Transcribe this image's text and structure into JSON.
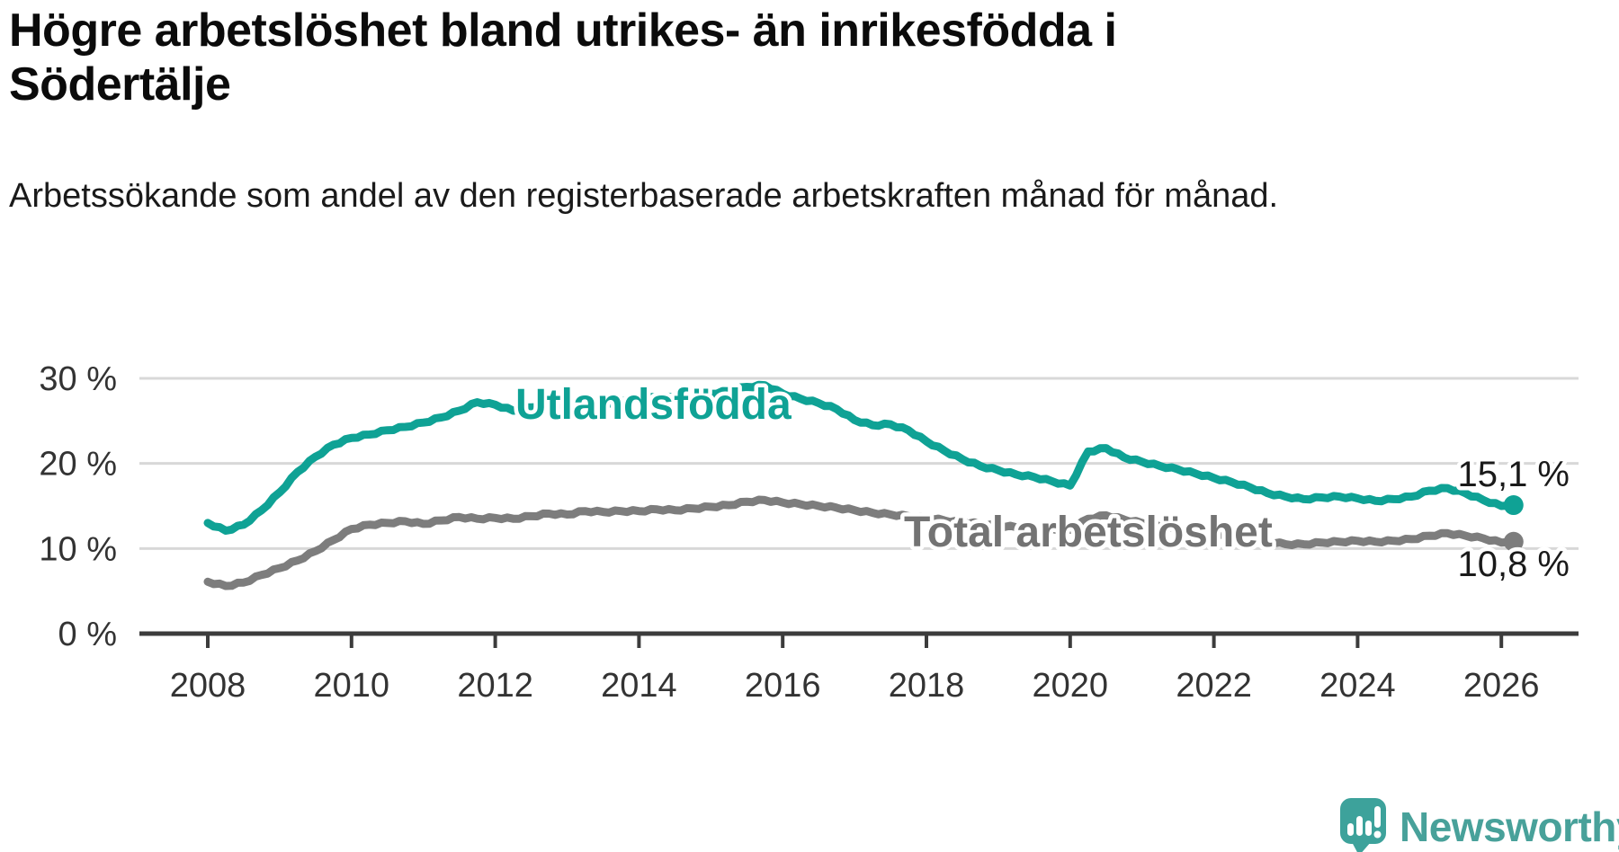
{
  "title": "Högre arbetslöshet bland utrikes- än inrikesfödda i Södertälje",
  "subtitle": "Arbetssökande som andel av den registerbaserade arbetskraften månad för månad.",
  "branding": {
    "name": "Newsworthy",
    "logo_icon": "speech-bubble-bar-chart-icon",
    "color": "#48a19a"
  },
  "colors": {
    "foreign_born_line": "#0fa295",
    "total_line": "#7d7d7d",
    "total_label": "#737373",
    "gridline": "#d8d8d8",
    "axis": "#3c3c3c",
    "axis_text": "#333333",
    "end_label_text": "#1a1a1a"
  },
  "chart_data": {
    "type": "line",
    "title": "Högre arbetslöshet bland utrikes- än inrikesfödda i Södertälje",
    "subtitle": "Arbetssökande som andel av den registerbaserade arbetskraften månad för månad.",
    "unit": "%",
    "xlabel": "",
    "ylabel": "",
    "ylim": [
      0,
      32
    ],
    "yticks": [
      {
        "value": 0,
        "label": "0 %"
      },
      {
        "value": 10,
        "label": "10 %"
      },
      {
        "value": 20,
        "label": "20 %"
      },
      {
        "value": 30,
        "label": "30 %"
      }
    ],
    "xticks": [
      2008,
      2010,
      2012,
      2014,
      2016,
      2018,
      2020,
      2022,
      2024,
      2026
    ],
    "grid": "horizontal",
    "legend": "inline-labels",
    "x": [
      2008,
      2008.25,
      2008.5,
      2008.75,
      2009,
      2009.25,
      2009.5,
      2009.75,
      2010,
      2010.25,
      2010.5,
      2010.75,
      2011,
      2011.25,
      2011.5,
      2011.75,
      2012,
      2012.25,
      2012.5,
      2012.75,
      2013,
      2013.25,
      2013.5,
      2013.75,
      2014,
      2014.25,
      2014.5,
      2014.75,
      2015,
      2015.25,
      2015.5,
      2015.75,
      2016,
      2016.25,
      2016.5,
      2016.75,
      2017,
      2017.25,
      2017.5,
      2017.75,
      2018,
      2018.25,
      2018.5,
      2018.75,
      2019,
      2019.25,
      2019.5,
      2019.75,
      2020,
      2020.25,
      2020.5,
      2020.75,
      2021,
      2021.25,
      2021.5,
      2021.75,
      2022,
      2022.25,
      2022.5,
      2022.75,
      2023,
      2023.25,
      2023.5,
      2023.75,
      2024,
      2024.25,
      2024.5,
      2024.75,
      2025,
      2025.25,
      2025.5,
      2025.75,
      2026,
      2026.17
    ],
    "series": [
      {
        "name": "Utlandsfödda",
        "color": "#0fa295",
        "end_label": "15,1 %",
        "end_value": 15.1,
        "values": [
          13.0,
          12.1,
          12.8,
          14.5,
          16.6,
          19.0,
          20.8,
          22.2,
          23.0,
          23.4,
          23.9,
          24.3,
          24.8,
          25.4,
          26.2,
          27.2,
          26.9,
          26.2,
          26.6,
          27.0,
          26.8,
          27.2,
          27.0,
          27.4,
          27.5,
          27.8,
          27.7,
          28.0,
          28.2,
          28.5,
          29.0,
          29.2,
          28.2,
          27.6,
          27.1,
          26.4,
          25.1,
          24.5,
          24.6,
          23.9,
          22.6,
          21.5,
          20.5,
          19.7,
          19.2,
          18.7,
          18.4,
          17.9,
          17.4,
          21.4,
          21.8,
          20.7,
          20.2,
          19.7,
          19.3,
          18.8,
          18.3,
          17.8,
          17.2,
          16.5,
          16.1,
          15.8,
          16.0,
          16.1,
          15.9,
          15.6,
          15.8,
          16.1,
          16.8,
          17.1,
          16.5,
          15.7,
          15.0,
          15.1
        ]
      },
      {
        "name": "Total arbetslöshet",
        "color": "#7d7d7d",
        "end_label": "10,8 %",
        "end_value": 10.8,
        "values": [
          6.1,
          5.6,
          6.0,
          6.9,
          7.7,
          8.6,
          9.7,
          11.0,
          12.3,
          12.8,
          13.0,
          13.2,
          12.9,
          13.3,
          13.7,
          13.5,
          13.6,
          13.5,
          13.8,
          14.1,
          14.0,
          14.4,
          14.3,
          14.4,
          14.4,
          14.6,
          14.5,
          14.7,
          14.9,
          15.1,
          15.5,
          15.7,
          15.4,
          15.2,
          15.0,
          14.8,
          14.5,
          14.2,
          14.0,
          13.8,
          13.6,
          13.3,
          13.1,
          12.9,
          12.7,
          12.5,
          12.4,
          12.3,
          12.2,
          13.5,
          13.9,
          13.4,
          13.0,
          12.6,
          12.3,
          12.0,
          11.8,
          11.5,
          11.2,
          10.8,
          10.5,
          10.5,
          10.7,
          10.8,
          10.9,
          10.8,
          10.9,
          11.1,
          11.5,
          11.8,
          11.5,
          11.2,
          10.7,
          10.8
        ]
      }
    ]
  }
}
